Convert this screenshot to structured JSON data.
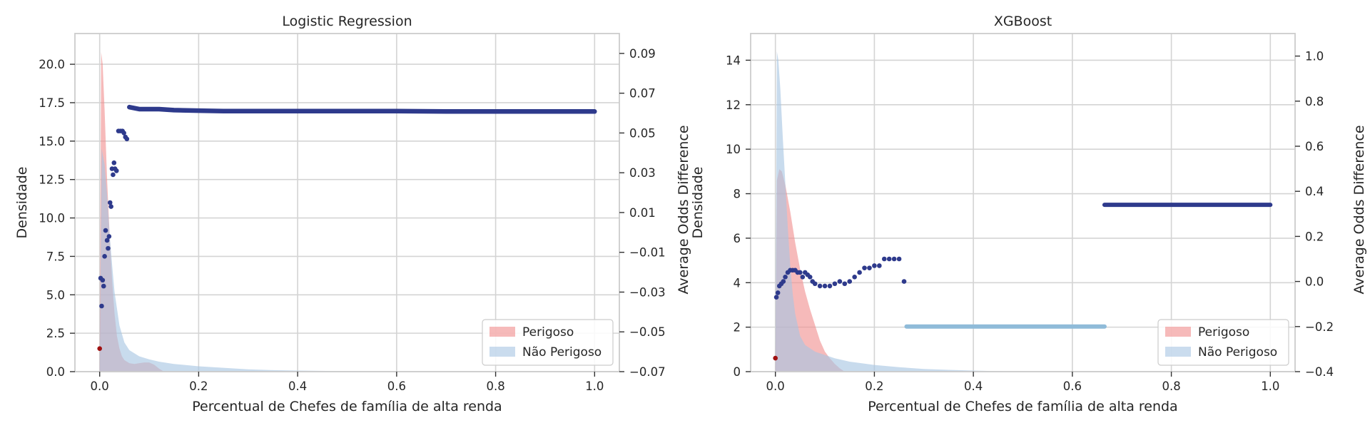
{
  "chart_data": [
    {
      "type": "area",
      "title": "Logistic Regression",
      "xlabel": "Percentual de Chefes de família de alta renda",
      "ylabel": "Densidade",
      "y2label": "Average Odds Difference",
      "xlim": [
        -0.05,
        1.05
      ],
      "ylim": [
        0,
        22
      ],
      "y2lim": [
        -0.07,
        0.1
      ],
      "x_ticks": [
        "0.0",
        "0.2",
        "0.4",
        "0.6",
        "0.8",
        "1.0"
      ],
      "y_ticks": [
        "0.0",
        "2.5",
        "5.0",
        "7.5",
        "10.0",
        "12.5",
        "15.0",
        "17.5",
        "20.0"
      ],
      "y2_ticks": [
        "−0.07",
        "−0.05",
        "−0.03",
        "−0.01",
        "0.01",
        "0.03",
        "0.05",
        "0.07",
        "0.09"
      ],
      "grid": true,
      "legend_position": "bottom-right",
      "density_series": [
        {
          "name": "Perigoso",
          "color": "#f08c8c",
          "x": [
            0,
            0.003,
            0.006,
            0.01,
            0.015,
            0.02,
            0.025,
            0.03,
            0.035,
            0.04,
            0.045,
            0.05,
            0.06,
            0.07,
            0.08,
            0.09,
            0.1,
            0.11,
            0.12,
            0.13
          ],
          "y": [
            0,
            20.8,
            20.0,
            17.0,
            12.5,
            9.0,
            6.0,
            3.8,
            2.3,
            1.5,
            1.0,
            0.75,
            0.55,
            0.5,
            0.55,
            0.6,
            0.6,
            0.45,
            0.2,
            0
          ]
        },
        {
          "name": "Não Perigoso",
          "color": "#a7c5e2",
          "x": [
            0,
            0.004,
            0.01,
            0.015,
            0.02,
            0.025,
            0.03,
            0.04,
            0.05,
            0.06,
            0.08,
            0.1,
            0.12,
            0.15,
            0.2,
            0.25,
            0.3,
            0.35,
            0.4,
            0.5,
            0.6,
            0.7
          ],
          "y": [
            0,
            14.5,
            13.5,
            11.5,
            9.0,
            7.0,
            5.2,
            3.0,
            1.9,
            1.4,
            1.0,
            0.8,
            0.65,
            0.5,
            0.35,
            0.25,
            0.15,
            0.1,
            0.07,
            0.03,
            0.01,
            0
          ]
        }
      ],
      "points_secondary": {
        "color": "#2e3a8c",
        "x": [
          0.002,
          0.004,
          0.006,
          0.008,
          0.01,
          0.012,
          0.015,
          0.017,
          0.019,
          0.021,
          0.023,
          0.025,
          0.027,
          0.029,
          0.031,
          0.034,
          0.038,
          0.042,
          0.046,
          0.049,
          0.052,
          0.055
        ],
        "y": [
          -0.023,
          -0.037,
          -0.024,
          -0.027,
          -0.012,
          0.001,
          -0.004,
          -0.008,
          -0.002,
          0.015,
          0.013,
          0.032,
          0.029,
          0.035,
          0.032,
          0.031,
          0.051,
          0.051,
          0.051,
          0.05,
          0.048,
          0.047
        ],
        "line_x": [
          0.06,
          0.07,
          0.08,
          0.1,
          0.12,
          0.15,
          0.2,
          0.25,
          0.3,
          0.4,
          0.5,
          0.6,
          0.7,
          0.8,
          0.9,
          1.0
        ],
        "line_y": [
          0.063,
          0.0625,
          0.062,
          0.062,
          0.062,
          0.0615,
          0.0612,
          0.061,
          0.061,
          0.061,
          0.061,
          0.061,
          0.0608,
          0.0608,
          0.0608,
          0.0608
        ]
      },
      "outlier_point": {
        "color": "#a01010",
        "x": 0.0,
        "y": -0.0584
      },
      "legend": [
        "Perigoso",
        "Não Perigoso"
      ]
    },
    {
      "type": "area",
      "title": "XGBoost",
      "xlabel": "Percentual de Chefes de família de alta renda",
      "ylabel": "Densidade",
      "y2label": "Average Odds Difference",
      "xlim": [
        -0.05,
        1.05
      ],
      "ylim": [
        0,
        15.2
      ],
      "y2lim": [
        -0.4,
        1.1
      ],
      "x_ticks": [
        "0.0",
        "0.2",
        "0.4",
        "0.6",
        "0.8",
        "1.0"
      ],
      "y_ticks": [
        "0",
        "2",
        "4",
        "6",
        "8",
        "10",
        "12",
        "14"
      ],
      "y2_ticks": [
        "−0.4",
        "−0.2",
        "0.0",
        "0.2",
        "0.4",
        "0.6",
        "0.8",
        "1.0"
      ],
      "grid": true,
      "legend_position": "bottom-right",
      "density_series": [
        {
          "name": "Perigoso",
          "color": "#f08c8c",
          "x": [
            0,
            0.003,
            0.008,
            0.013,
            0.02,
            0.03,
            0.04,
            0.05,
            0.06,
            0.07,
            0.08,
            0.09,
            0.1,
            0.11,
            0.12,
            0.13,
            0.14
          ],
          "y": [
            0,
            8.6,
            9.1,
            9.0,
            8.4,
            7.2,
            5.8,
            4.6,
            3.6,
            2.8,
            2.1,
            1.4,
            0.9,
            0.6,
            0.35,
            0.15,
            0
          ]
        },
        {
          "name": "Não Perigoso",
          "color": "#a7c5e2",
          "x": [
            0,
            0.003,
            0.006,
            0.01,
            0.015,
            0.02,
            0.025,
            0.03,
            0.035,
            0.04,
            0.05,
            0.06,
            0.08,
            0.1,
            0.12,
            0.15,
            0.2,
            0.25,
            0.3,
            0.35,
            0.4,
            0.45,
            0.5
          ],
          "y": [
            0,
            14.4,
            14.0,
            12.7,
            10.5,
            8.5,
            6.5,
            4.8,
            3.5,
            2.6,
            1.6,
            1.2,
            0.9,
            0.75,
            0.6,
            0.45,
            0.3,
            0.2,
            0.12,
            0.08,
            0.05,
            0.02,
            0
          ]
        }
      ],
      "points_secondary": {
        "color": "#2e3a8c",
        "x": [
          0.002,
          0.005,
          0.008,
          0.012,
          0.016,
          0.02,
          0.025,
          0.03,
          0.035,
          0.04,
          0.045,
          0.05,
          0.055,
          0.06,
          0.065,
          0.07,
          0.075,
          0.08,
          0.09,
          0.1,
          0.11,
          0.12,
          0.13,
          0.14,
          0.15,
          0.16,
          0.17,
          0.18,
          0.19,
          0.2,
          0.21,
          0.22,
          0.23,
          0.24,
          0.25,
          0.26
        ],
        "y": [
          -0.07,
          -0.05,
          -0.02,
          -0.01,
          0.0,
          0.02,
          0.04,
          0.05,
          0.05,
          0.05,
          0.04,
          0.04,
          0.02,
          0.04,
          0.03,
          0.02,
          0.0,
          -0.01,
          -0.02,
          -0.02,
          -0.02,
          -0.01,
          0.0,
          -0.01,
          0.0,
          0.02,
          0.04,
          0.06,
          0.06,
          0.07,
          0.07,
          0.1,
          0.1,
          0.1,
          0.1,
          0.0
        ]
      },
      "light_segment": {
        "color": "#8fbbd9",
        "x_start": 0.265,
        "x_end": 0.665,
        "y": -0.2
      },
      "dark_segment": {
        "color": "#2e3a8c",
        "x_start": 0.665,
        "x_end": 1.0,
        "y": 0.34
      },
      "outlier_point": {
        "color": "#a01010",
        "x": 0.0,
        "y": -0.34
      },
      "legend": [
        "Perigoso",
        "Não Perigoso"
      ]
    }
  ]
}
